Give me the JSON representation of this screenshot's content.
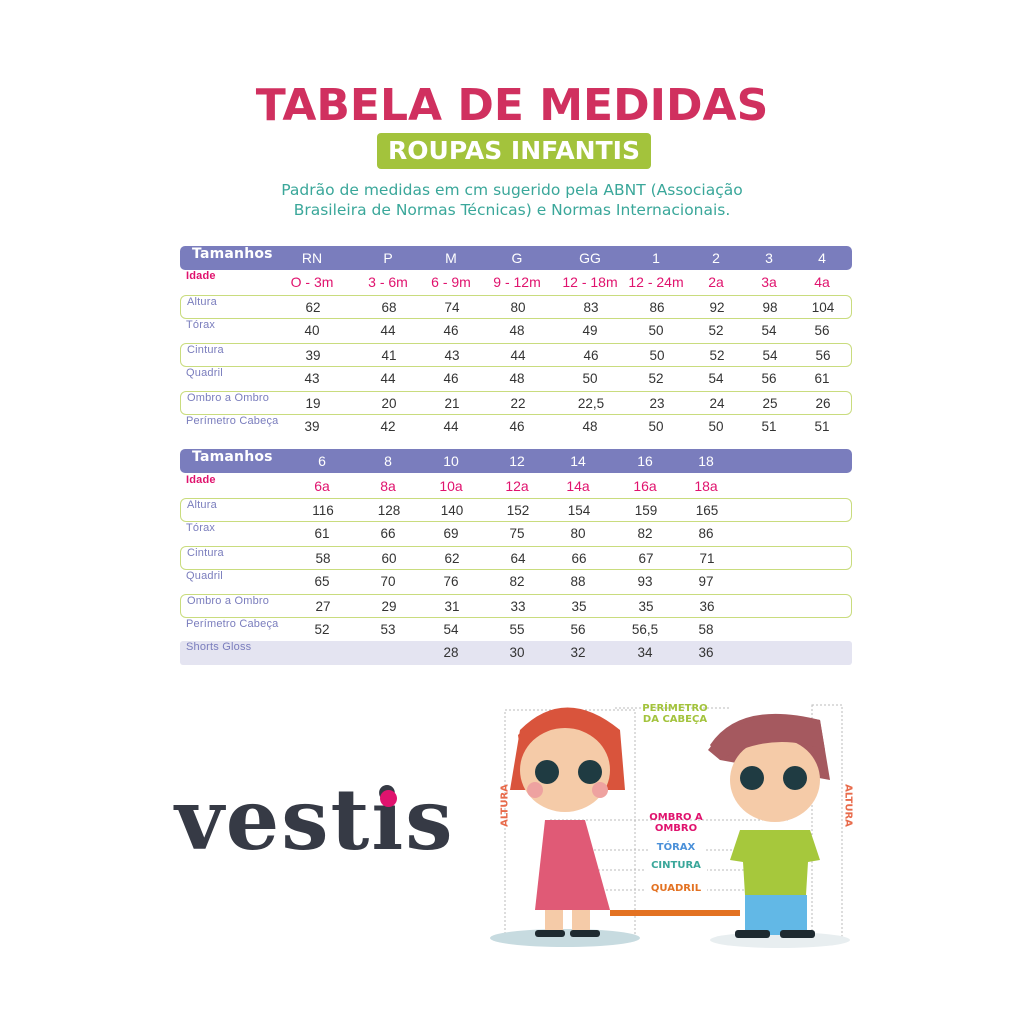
{
  "header": {
    "title": "TABELA DE MEDIDAS",
    "subtitle": "ROUPAS INFANTIS",
    "description_line1": "Padrão de medidas em cm sugerido pela ABNT (Associação",
    "description_line2": "Brasileira de Normas Técnicas) e Normas Internacionais."
  },
  "colors": {
    "title": "#d0305f",
    "subtitle_bg": "#a3c33c",
    "description": "#3aa79a",
    "table_header": "#7a7dbd",
    "age": "#e0136e",
    "row_border": "#c9dc7e"
  },
  "table1": {
    "header_label": "Tamanhos",
    "sizes": [
      "RN",
      "P",
      "M",
      "G",
      "GG",
      "1",
      "2",
      "3",
      "4"
    ],
    "rows": [
      {
        "label": "Idade",
        "values": [
          "O - 3m",
          "3 - 6m",
          "6 - 9m",
          "9 - 12m",
          "12 - 18m",
          "12 - 24m",
          "2a",
          "3a",
          "4a"
        ]
      },
      {
        "label": "Altura",
        "values": [
          "62",
          "68",
          "74",
          "80",
          "83",
          "86",
          "92",
          "98",
          "104"
        ]
      },
      {
        "label": "Tórax",
        "values": [
          "40",
          "44",
          "46",
          "48",
          "49",
          "50",
          "52",
          "54",
          "56"
        ]
      },
      {
        "label": "Cintura",
        "values": [
          "39",
          "41",
          "43",
          "44",
          "46",
          "50",
          "52",
          "54",
          "56"
        ]
      },
      {
        "label": "Quadril",
        "values": [
          "43",
          "44",
          "46",
          "48",
          "50",
          "52",
          "54",
          "56",
          "61"
        ]
      },
      {
        "label": "Ombro a Ombro",
        "values": [
          "19",
          "20",
          "21",
          "22",
          "22,5",
          "23",
          "24",
          "25",
          "26"
        ]
      },
      {
        "label": "Perímetro Cabeça",
        "values": [
          "39",
          "42",
          "44",
          "46",
          "48",
          "50",
          "50",
          "51",
          "51"
        ]
      }
    ]
  },
  "table2": {
    "header_label": "Tamanhos",
    "sizes": [
      "6",
      "8",
      "10",
      "12",
      "14",
      "16",
      "18"
    ],
    "rows": [
      {
        "label": "Idade",
        "values": [
          "6a",
          "8a",
          "10a",
          "12a",
          "14a",
          "16a",
          "18a"
        ]
      },
      {
        "label": "Altura",
        "values": [
          "116",
          "128",
          "140",
          "152",
          "154",
          "159",
          "165"
        ]
      },
      {
        "label": "Tórax",
        "values": [
          "61",
          "66",
          "69",
          "75",
          "80",
          "82",
          "86"
        ]
      },
      {
        "label": "Cintura",
        "values": [
          "58",
          "60",
          "62",
          "64",
          "66",
          "67",
          "71"
        ]
      },
      {
        "label": "Quadril",
        "values": [
          "65",
          "70",
          "76",
          "82",
          "88",
          "93",
          "97"
        ]
      },
      {
        "label": "Ombro a Ombro",
        "values": [
          "27",
          "29",
          "31",
          "33",
          "35",
          "35",
          "36"
        ]
      },
      {
        "label": "Perímetro Cabeça",
        "values": [
          "52",
          "53",
          "54",
          "55",
          "56",
          "56,5",
          "58"
        ]
      },
      {
        "label": "Shorts Gloss",
        "values": [
          "",
          "",
          "28",
          "30",
          "32",
          "34",
          "36"
        ]
      }
    ]
  },
  "brand": {
    "logo_text": "vestis"
  },
  "illustration": {
    "head": "PERÍMETRO DA CABEÇA",
    "height_left": "ALTURA",
    "height_right": "ALTURA",
    "shoulder": "OMBRO A OMBRO",
    "chest": "TÓRAX",
    "waist": "CINTURA",
    "hip": "QUADRIL"
  }
}
